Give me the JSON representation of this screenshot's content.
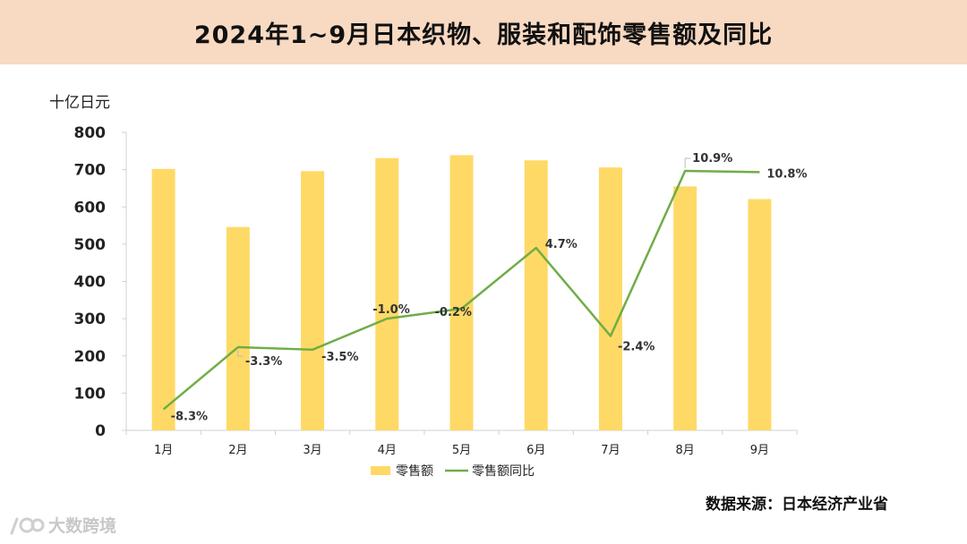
{
  "title": "2024年1~9月日本织物、服装和配饰零售额及同比",
  "source": "数据来源：日本经济产业省",
  "watermark": "大数跨境",
  "colors": {
    "bar": "#ffd966",
    "line": "#70ad47",
    "title_bg": "#f8d9c2"
  },
  "chart_data": {
    "type": "bar",
    "title": "2024年1~9月日本织物、服装和配饰零售额及同比",
    "ylabel": "十亿日元",
    "ylim": [
      0,
      800
    ],
    "yticks": [
      "0",
      "100",
      "200",
      "300",
      "400",
      "500",
      "600",
      "700",
      "800"
    ],
    "categories": [
      "1月",
      "2月",
      "3月",
      "4月",
      "5月",
      "6月",
      "7月",
      "8月",
      "9月"
    ],
    "legend_position": "bottom",
    "grid": false,
    "series": [
      {
        "name": "零售额",
        "type": "bar",
        "axis": "primary",
        "values": [
          702,
          546,
          696,
          731,
          739,
          725,
          706,
          655,
          621
        ]
      },
      {
        "name": "零售额同比",
        "type": "line",
        "axis": "secondary",
        "unit": "%",
        "secondary_ylim": [
          -10,
          14
        ],
        "values": [
          -8.3,
          -3.3,
          -3.5,
          -1.0,
          -0.2,
          4.7,
          -2.4,
          10.9,
          10.8
        ],
        "labels": [
          "-8.3%",
          "-3.3%",
          "-3.5%",
          "-1.0%",
          "-0.2%",
          "4.7%",
          "-2.4%",
          "10.9%",
          "10.8%"
        ]
      }
    ]
  }
}
